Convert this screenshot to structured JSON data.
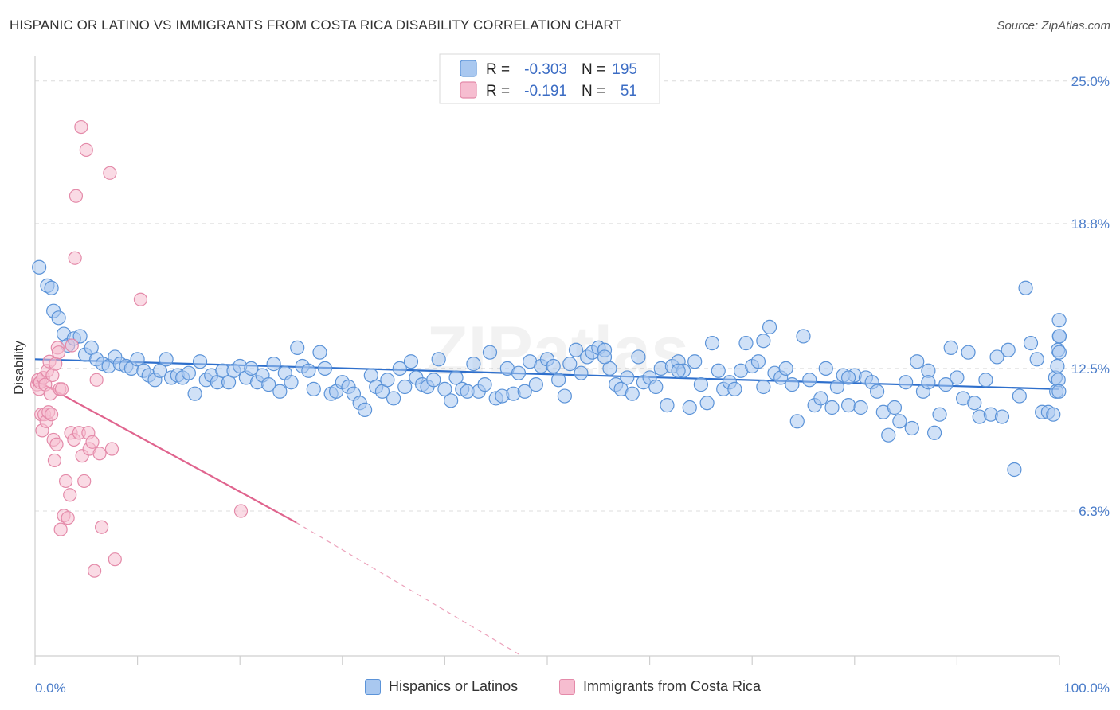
{
  "title": "HISPANIC OR LATINO VS IMMIGRANTS FROM COSTA RICA DISABILITY CORRELATION CHART",
  "source": "Source: ZipAtlas.com",
  "watermark": "ZIPatlas",
  "colors": {
    "blue_fill": "#a9c8f0",
    "blue_stroke": "#5b93d8",
    "blue_line": "#2e6fcc",
    "pink_fill": "#f6bdd0",
    "pink_stroke": "#e48aa9",
    "pink_line": "#e0648e",
    "tick_text": "#4a7cc9"
  },
  "legend": {
    "rows": [
      {
        "r_label": "R =",
        "r_value": "-0.303",
        "n_label": "N =",
        "n_value": "195"
      },
      {
        "r_label": "R =",
        "r_value": "-0.191",
        "n_label": "N =",
        "n_value": "51"
      }
    ]
  },
  "bottom_legend": [
    "Hispanics or Latinos",
    "Immigrants from Costa Rica"
  ],
  "chart_data": {
    "type": "scatter",
    "xlabel": "",
    "ylabel": "Disability",
    "xlim": [
      0,
      100
    ],
    "ylim": [
      0,
      26.1
    ],
    "x_tick_labels": [
      "0.0%",
      "100.0%"
    ],
    "y_ticks": [
      6.3,
      12.5,
      18.8,
      25.0
    ],
    "y_tick_labels": [
      "6.3%",
      "12.5%",
      "18.8%",
      "25.0%"
    ],
    "grid": "horizontal dashed",
    "legend_placement": "top-center",
    "series": [
      {
        "name": "Hispanics or Latinos",
        "R": -0.303,
        "N": 195,
        "trend": {
          "x": [
            0,
            100
          ],
          "y": [
            12.9,
            11.6
          ]
        },
        "points": [
          [
            0.4,
            16.9
          ],
          [
            1.2,
            16.1
          ],
          [
            1.6,
            16.0
          ],
          [
            1.8,
            15.0
          ],
          [
            2.3,
            14.7
          ],
          [
            2.8,
            14.0
          ],
          [
            3.2,
            13.5
          ],
          [
            3.8,
            13.8
          ],
          [
            4.4,
            13.9
          ],
          [
            4.9,
            13.1
          ],
          [
            5.5,
            13.4
          ],
          [
            6.0,
            12.9
          ],
          [
            6.6,
            12.7
          ],
          [
            7.2,
            12.6
          ],
          [
            7.8,
            13.0
          ],
          [
            8.3,
            12.7
          ],
          [
            8.9,
            12.6
          ],
          [
            9.4,
            12.5
          ],
          [
            10.0,
            12.9
          ],
          [
            10.6,
            12.4
          ],
          [
            11.1,
            12.2
          ],
          [
            11.7,
            12.0
          ],
          [
            12.2,
            12.4
          ],
          [
            12.8,
            12.9
          ],
          [
            13.3,
            12.1
          ],
          [
            13.9,
            12.2
          ],
          [
            14.4,
            12.1
          ],
          [
            15.0,
            12.3
          ],
          [
            15.6,
            11.4
          ],
          [
            16.1,
            12.8
          ],
          [
            16.7,
            12.0
          ],
          [
            17.2,
            12.2
          ],
          [
            17.8,
            11.9
          ],
          [
            18.3,
            12.4
          ],
          [
            18.9,
            11.9
          ],
          [
            19.4,
            12.4
          ],
          [
            20.0,
            12.6
          ],
          [
            20.6,
            12.1
          ],
          [
            21.1,
            12.5
          ],
          [
            21.7,
            11.9
          ],
          [
            22.2,
            12.2
          ],
          [
            22.8,
            11.8
          ],
          [
            23.3,
            12.7
          ],
          [
            23.9,
            11.5
          ],
          [
            24.4,
            12.3
          ],
          [
            25.0,
            11.9
          ],
          [
            25.6,
            13.4
          ],
          [
            26.1,
            12.6
          ],
          [
            26.7,
            12.4
          ],
          [
            27.2,
            11.6
          ],
          [
            27.8,
            13.2
          ],
          [
            28.3,
            12.5
          ],
          [
            28.9,
            11.4
          ],
          [
            29.4,
            11.5
          ],
          [
            30.0,
            11.9
          ],
          [
            30.6,
            11.7
          ],
          [
            31.1,
            11.4
          ],
          [
            31.7,
            11.0
          ],
          [
            32.2,
            10.7
          ],
          [
            32.8,
            12.2
          ],
          [
            33.3,
            11.7
          ],
          [
            33.9,
            11.5
          ],
          [
            34.4,
            12.0
          ],
          [
            35.0,
            11.2
          ],
          [
            35.6,
            12.5
          ],
          [
            36.1,
            11.7
          ],
          [
            36.7,
            12.8
          ],
          [
            37.2,
            12.1
          ],
          [
            37.8,
            11.8
          ],
          [
            38.3,
            11.7
          ],
          [
            38.9,
            12.0
          ],
          [
            39.4,
            12.9
          ],
          [
            40.0,
            11.6
          ],
          [
            40.6,
            11.1
          ],
          [
            41.1,
            12.1
          ],
          [
            41.7,
            11.6
          ],
          [
            42.2,
            11.5
          ],
          [
            42.8,
            12.7
          ],
          [
            43.3,
            11.5
          ],
          [
            43.9,
            11.8
          ],
          [
            44.4,
            13.2
          ],
          [
            45.0,
            11.2
          ],
          [
            45.6,
            11.3
          ],
          [
            46.1,
            12.5
          ],
          [
            46.7,
            11.4
          ],
          [
            47.2,
            12.3
          ],
          [
            47.8,
            11.5
          ],
          [
            48.3,
            12.8
          ],
          [
            48.9,
            11.8
          ],
          [
            49.4,
            12.6
          ],
          [
            50.0,
            12.9
          ],
          [
            50.6,
            12.6
          ],
          [
            51.1,
            12.0
          ],
          [
            51.7,
            11.3
          ],
          [
            52.2,
            12.7
          ],
          [
            52.8,
            13.3
          ],
          [
            53.3,
            12.3
          ],
          [
            53.9,
            13.0
          ],
          [
            54.4,
            13.2
          ],
          [
            55.0,
            13.4
          ],
          [
            55.6,
            13.3
          ],
          [
            56.1,
            12.5
          ],
          [
            56.7,
            11.8
          ],
          [
            57.2,
            11.6
          ],
          [
            57.8,
            12.1
          ],
          [
            58.3,
            11.4
          ],
          [
            58.9,
            13.0
          ],
          [
            59.4,
            11.9
          ],
          [
            60.0,
            12.1
          ],
          [
            60.6,
            11.7
          ],
          [
            61.1,
            12.5
          ],
          [
            61.7,
            10.9
          ],
          [
            62.2,
            12.6
          ],
          [
            62.8,
            12.8
          ],
          [
            63.3,
            12.4
          ],
          [
            63.9,
            10.8
          ],
          [
            64.4,
            12.8
          ],
          [
            65.0,
            11.8
          ],
          [
            65.6,
            11.0
          ],
          [
            66.1,
            13.6
          ],
          [
            66.7,
            12.4
          ],
          [
            67.2,
            11.6
          ],
          [
            67.8,
            11.9
          ],
          [
            68.3,
            11.6
          ],
          [
            68.9,
            12.4
          ],
          [
            69.4,
            13.6
          ],
          [
            70.0,
            12.6
          ],
          [
            70.6,
            12.8
          ],
          [
            71.1,
            13.7
          ],
          [
            71.7,
            14.3
          ],
          [
            72.2,
            12.3
          ],
          [
            72.8,
            12.1
          ],
          [
            73.3,
            12.5
          ],
          [
            73.9,
            11.8
          ],
          [
            74.4,
            10.2
          ],
          [
            75.0,
            13.9
          ],
          [
            75.6,
            12.0
          ],
          [
            76.1,
            10.9
          ],
          [
            76.7,
            11.2
          ],
          [
            77.2,
            12.5
          ],
          [
            77.8,
            10.8
          ],
          [
            78.3,
            11.7
          ],
          [
            78.9,
            12.2
          ],
          [
            79.4,
            10.9
          ],
          [
            80.0,
            12.2
          ],
          [
            80.6,
            10.8
          ],
          [
            81.1,
            12.1
          ],
          [
            81.7,
            11.9
          ],
          [
            82.2,
            11.5
          ],
          [
            82.8,
            10.6
          ],
          [
            83.3,
            9.6
          ],
          [
            83.9,
            10.8
          ],
          [
            84.4,
            10.2
          ],
          [
            85.0,
            11.9
          ],
          [
            85.6,
            9.9
          ],
          [
            86.1,
            12.8
          ],
          [
            86.7,
            11.5
          ],
          [
            87.2,
            12.4
          ],
          [
            87.8,
            9.7
          ],
          [
            88.3,
            10.5
          ],
          [
            88.9,
            11.8
          ],
          [
            89.4,
            13.4
          ],
          [
            90.0,
            12.1
          ],
          [
            90.6,
            11.2
          ],
          [
            91.1,
            13.2
          ],
          [
            91.7,
            11.0
          ],
          [
            92.2,
            10.4
          ],
          [
            92.8,
            12.0
          ],
          [
            93.3,
            10.5
          ],
          [
            93.9,
            13.0
          ],
          [
            94.4,
            10.4
          ],
          [
            95.0,
            13.3
          ],
          [
            95.6,
            8.1
          ],
          [
            96.1,
            11.3
          ],
          [
            96.7,
            16.0
          ],
          [
            97.2,
            13.6
          ],
          [
            97.8,
            12.9
          ],
          [
            98.3,
            10.6
          ],
          [
            98.9,
            10.6
          ],
          [
            99.4,
            10.5
          ],
          [
            99.6,
            12.1
          ],
          [
            99.7,
            11.5
          ],
          [
            99.8,
            12.6
          ],
          [
            99.85,
            13.3
          ],
          [
            99.9,
            12.0
          ],
          [
            99.95,
            11.5
          ],
          [
            99.97,
            14.6
          ],
          [
            99.98,
            13.9
          ],
          [
            99.99,
            13.2
          ],
          [
            100.0,
            13.9
          ],
          [
            55.6,
            13.0
          ],
          [
            62.8,
            12.4
          ],
          [
            71.1,
            11.7
          ],
          [
            79.4,
            12.1
          ],
          [
            87.2,
            11.9
          ]
        ]
      },
      {
        "name": "Immigrants from Costa Rica",
        "R": -0.191,
        "N": 51,
        "trend": {
          "x": [
            0,
            25.5
          ],
          "y": [
            12.0,
            5.8
          ],
          "dashed_to": [
            47.5,
            0
          ]
        },
        "points": [
          [
            0.2,
            11.8
          ],
          [
            0.3,
            12.0
          ],
          [
            0.4,
            11.6
          ],
          [
            0.5,
            11.9
          ],
          [
            0.6,
            10.5
          ],
          [
            0.7,
            9.8
          ],
          [
            0.8,
            12.1
          ],
          [
            0.9,
            10.5
          ],
          [
            1.0,
            11.8
          ],
          [
            1.1,
            10.2
          ],
          [
            1.2,
            12.4
          ],
          [
            1.3,
            10.6
          ],
          [
            1.4,
            12.8
          ],
          [
            1.5,
            11.4
          ],
          [
            1.6,
            10.5
          ],
          [
            1.7,
            12.2
          ],
          [
            1.8,
            9.4
          ],
          [
            1.9,
            8.5
          ],
          [
            2.0,
            12.7
          ],
          [
            2.1,
            9.2
          ],
          [
            2.2,
            13.4
          ],
          [
            2.3,
            13.2
          ],
          [
            2.4,
            11.6
          ],
          [
            2.5,
            5.5
          ],
          [
            2.6,
            11.6
          ],
          [
            2.8,
            6.1
          ],
          [
            3.0,
            7.6
          ],
          [
            3.2,
            6.0
          ],
          [
            3.4,
            7.0
          ],
          [
            3.5,
            9.7
          ],
          [
            3.6,
            13.5
          ],
          [
            3.8,
            9.4
          ],
          [
            3.9,
            17.3
          ],
          [
            4.0,
            20.0
          ],
          [
            4.3,
            9.7
          ],
          [
            4.5,
            23.0
          ],
          [
            4.6,
            8.7
          ],
          [
            4.8,
            7.6
          ],
          [
            5.0,
            22.0
          ],
          [
            5.2,
            9.7
          ],
          [
            5.3,
            9.0
          ],
          [
            5.6,
            9.3
          ],
          [
            5.8,
            3.7
          ],
          [
            6.0,
            12.0
          ],
          [
            6.3,
            8.8
          ],
          [
            6.5,
            5.6
          ],
          [
            7.3,
            21.0
          ],
          [
            7.5,
            9.0
          ],
          [
            7.8,
            4.2
          ],
          [
            10.3,
            15.5
          ],
          [
            20.1,
            6.3
          ]
        ]
      }
    ]
  }
}
